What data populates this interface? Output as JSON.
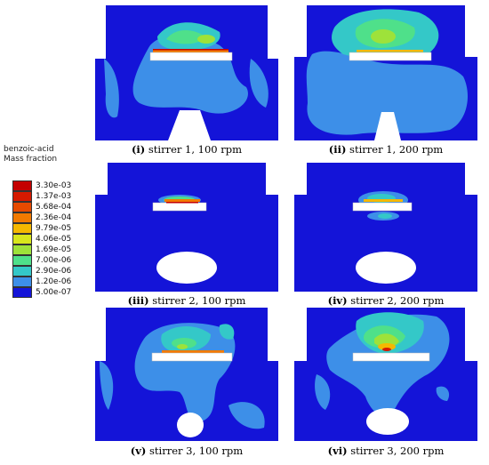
{
  "legend": {
    "title_line1": "benzoic-acid",
    "title_line2": "Mass fraction",
    "entries": [
      {
        "label": "3.30e-03",
        "color": "#c40000"
      },
      {
        "label": "1.37e-03",
        "color": "#d51a00"
      },
      {
        "label": "5.68e-04",
        "color": "#e64a00"
      },
      {
        "label": "2.36e-04",
        "color": "#f27a00"
      },
      {
        "label": "9.79e-05",
        "color": "#f5b800"
      },
      {
        "label": "4.06e-05",
        "color": "#d8e61c"
      },
      {
        "label": "1.69e-05",
        "color": "#9ee23a"
      },
      {
        "label": "7.00e-06",
        "color": "#4fe08a"
      },
      {
        "label": "2.90e-06",
        "color": "#34c8c8"
      },
      {
        "label": "1.20e-06",
        "color": "#3d8fe8"
      },
      {
        "label": "5.00e-07",
        "color": "#1414d8"
      }
    ]
  },
  "panels": [
    {
      "num": "(i)",
      "text": " stirrer 1, 100 rpm"
    },
    {
      "num": "(ii)",
      "text": " stirrer 1, 200 rpm"
    },
    {
      "num": "(iii)",
      "text": " stirrer 2, 100 rpm"
    },
    {
      "num": "(iv)",
      "text": " stirrer 2, 200 rpm"
    },
    {
      "num": "(v)",
      "text": " stirrer 3, 100 rpm"
    },
    {
      "num": "(vi)",
      "text": " stirrer 3, 200 rpm"
    }
  ]
}
